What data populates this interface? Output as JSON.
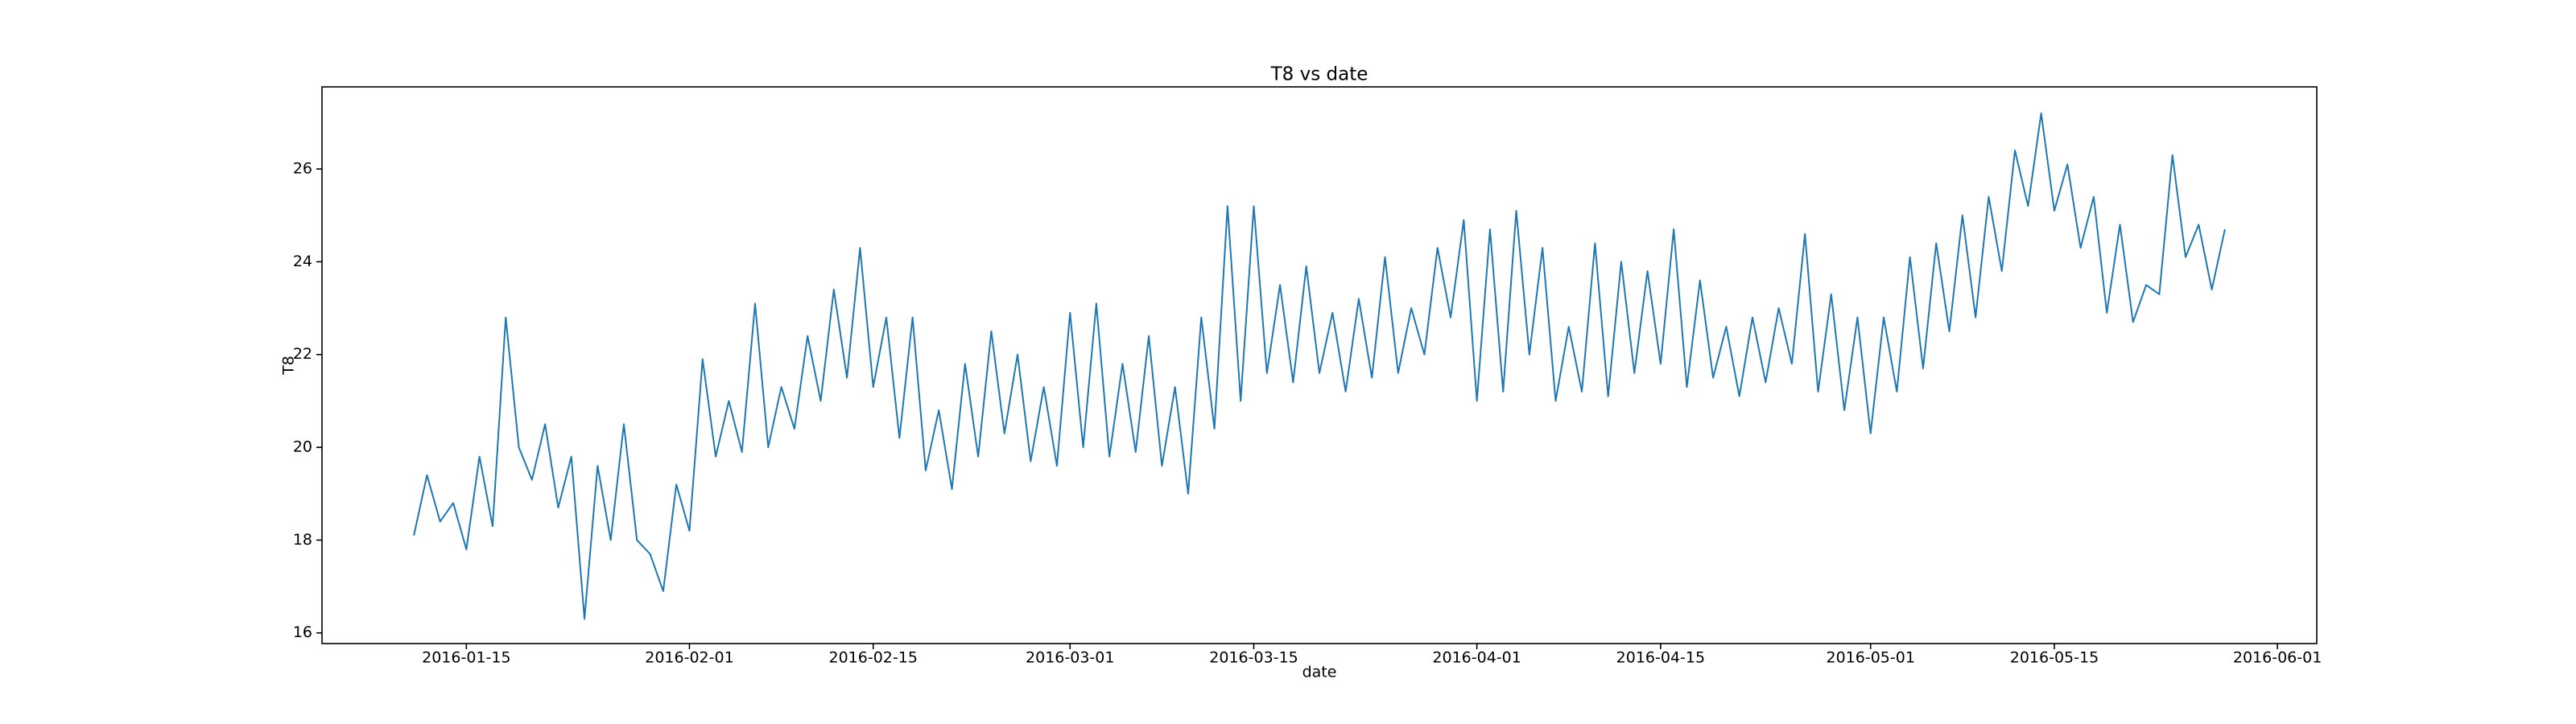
{
  "chart_data": {
    "type": "line",
    "title": "T8 vs date",
    "x_label": "date",
    "y_label": "T8",
    "x": [
      "2016-01-11",
      "2016-01-12",
      "2016-01-13",
      "2016-01-14",
      "2016-01-15",
      "2016-01-16",
      "2016-01-17",
      "2016-01-18",
      "2016-01-19",
      "2016-01-20",
      "2016-01-21",
      "2016-01-22",
      "2016-01-23",
      "2016-01-24",
      "2016-01-25",
      "2016-01-26",
      "2016-01-27",
      "2016-01-28",
      "2016-01-29",
      "2016-01-30",
      "2016-01-31",
      "2016-02-01",
      "2016-02-02",
      "2016-02-03",
      "2016-02-04",
      "2016-02-05",
      "2016-02-06",
      "2016-02-07",
      "2016-02-08",
      "2016-02-09",
      "2016-02-10",
      "2016-02-11",
      "2016-02-12",
      "2016-02-13",
      "2016-02-14",
      "2016-02-15",
      "2016-02-16",
      "2016-02-17",
      "2016-02-18",
      "2016-02-19",
      "2016-02-20",
      "2016-02-21",
      "2016-02-22",
      "2016-02-23",
      "2016-02-24",
      "2016-02-25",
      "2016-02-26",
      "2016-02-27",
      "2016-02-28",
      "2016-02-29",
      "2016-03-01",
      "2016-03-02",
      "2016-03-03",
      "2016-03-04",
      "2016-03-05",
      "2016-03-06",
      "2016-03-07",
      "2016-03-08",
      "2016-03-09",
      "2016-03-10",
      "2016-03-11",
      "2016-03-12",
      "2016-03-13",
      "2016-03-14",
      "2016-03-15",
      "2016-03-16",
      "2016-03-17",
      "2016-03-18",
      "2016-03-19",
      "2016-03-20",
      "2016-03-21",
      "2016-03-22",
      "2016-03-23",
      "2016-03-24",
      "2016-03-25",
      "2016-03-26",
      "2016-03-27",
      "2016-03-28",
      "2016-03-29",
      "2016-03-30",
      "2016-03-31",
      "2016-04-01",
      "2016-04-02",
      "2016-04-03",
      "2016-04-04",
      "2016-04-05",
      "2016-04-06",
      "2016-04-07",
      "2016-04-08",
      "2016-04-09",
      "2016-04-10",
      "2016-04-11",
      "2016-04-12",
      "2016-04-13",
      "2016-04-14",
      "2016-04-15",
      "2016-04-16",
      "2016-04-17",
      "2016-04-18",
      "2016-04-19",
      "2016-04-20",
      "2016-04-21",
      "2016-04-22",
      "2016-04-23",
      "2016-04-24",
      "2016-04-25",
      "2016-04-26",
      "2016-04-27",
      "2016-04-28",
      "2016-04-29",
      "2016-04-30",
      "2016-05-01",
      "2016-05-02",
      "2016-05-03",
      "2016-05-04",
      "2016-05-05",
      "2016-05-06",
      "2016-05-07",
      "2016-05-08",
      "2016-05-09",
      "2016-05-10",
      "2016-05-11",
      "2016-05-12",
      "2016-05-13",
      "2016-05-14",
      "2016-05-15",
      "2016-05-16",
      "2016-05-17",
      "2016-05-18",
      "2016-05-19",
      "2016-05-20",
      "2016-05-21",
      "2016-05-22",
      "2016-05-23",
      "2016-05-24",
      "2016-05-25",
      "2016-05-26",
      "2016-05-27",
      "2016-05-28"
    ],
    "series": [
      {
        "name": "T8",
        "color": "#1f77b4",
        "values": [
          18.1,
          19.4,
          18.4,
          18.8,
          17.8,
          19.8,
          18.3,
          22.8,
          20.0,
          19.3,
          20.5,
          18.7,
          19.8,
          16.3,
          19.6,
          18.0,
          20.5,
          18.0,
          17.7,
          16.9,
          19.2,
          18.2,
          21.9,
          19.8,
          21.0,
          19.9,
          23.1,
          20.0,
          21.3,
          20.4,
          22.4,
          21.0,
          23.4,
          21.5,
          24.3,
          21.3,
          22.8,
          20.2,
          22.8,
          19.5,
          20.8,
          19.1,
          21.8,
          19.8,
          22.5,
          20.3,
          22.0,
          19.7,
          21.3,
          19.6,
          22.9,
          20.0,
          23.1,
          19.8,
          21.8,
          19.9,
          22.4,
          19.6,
          21.3,
          19.0,
          22.8,
          20.4,
          25.2,
          21.0,
          25.2,
          21.6,
          23.5,
          21.4,
          23.9,
          21.6,
          22.9,
          21.2,
          23.2,
          21.5,
          24.1,
          21.6,
          23.0,
          22.0,
          24.3,
          22.8,
          24.9,
          21.0,
          24.7,
          21.2,
          25.1,
          22.0,
          24.3,
          21.0,
          22.6,
          21.2,
          24.4,
          21.1,
          24.0,
          21.6,
          23.8,
          21.8,
          24.7,
          21.3,
          23.6,
          21.5,
          22.6,
          21.1,
          22.8,
          21.4,
          23.0,
          21.8,
          24.6,
          21.2,
          23.3,
          20.8,
          22.8,
          20.3,
          22.8,
          21.2,
          24.1,
          21.7,
          24.4,
          22.5,
          25.0,
          22.8,
          25.4,
          23.8,
          26.4,
          25.2,
          27.2,
          25.1,
          26.1,
          24.3,
          25.4,
          22.9,
          24.8,
          22.7,
          23.5,
          23.3,
          26.3,
          24.1,
          24.8,
          23.4,
          24.7
        ]
      }
    ],
    "xlim": [
      "2016-01-04",
      "2016-06-04"
    ],
    "xticks": [
      "2016-01-15",
      "2016-02-01",
      "2016-02-15",
      "2016-03-01",
      "2016-03-15",
      "2016-04-01",
      "2016-04-15",
      "2016-05-01",
      "2016-05-15",
      "2016-06-01"
    ],
    "ylim": [
      15.77,
      27.77
    ],
    "yticks": [
      16,
      18,
      20,
      22,
      24,
      26
    ]
  }
}
